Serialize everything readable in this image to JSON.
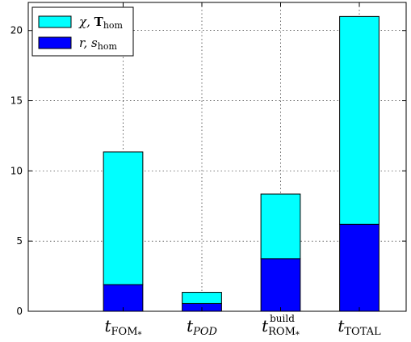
{
  "chart_data": {
    "type": "bar",
    "stacked": true,
    "categories": [
      {
        "base": "t",
        "sub": "FOM",
        "sub2": "*",
        "sup": ""
      },
      {
        "base": "t",
        "sub": "POD",
        "sub2": "",
        "sup": ""
      },
      {
        "base": "t",
        "sub": "ROM",
        "sub2": "*",
        "sup": "build"
      },
      {
        "base": "t",
        "sub": "TOTAL",
        "sub2": "",
        "sup": ""
      }
    ],
    "series": [
      {
        "name": "r, s_hom",
        "color": "#0000ff",
        "values": [
          1.9,
          0.55,
          3.75,
          6.2
        ]
      },
      {
        "name": "χ, T_hom",
        "color": "#00ffff",
        "values": [
          9.45,
          0.8,
          4.6,
          14.8
        ]
      }
    ],
    "legend": {
      "position": "top-left",
      "entries": [
        {
          "pre": "χ, ",
          "bold": "T",
          "sub": "hom",
          "color": "#00ffff"
        },
        {
          "pre": "r, s",
          "bold": "",
          "sub": "hom",
          "color": "#0000ff"
        }
      ]
    },
    "xlabel": "",
    "ylabel": "",
    "ylim": [
      0,
      22
    ],
    "yticks": [
      0,
      5,
      10,
      15,
      20
    ],
    "grid": true
  }
}
